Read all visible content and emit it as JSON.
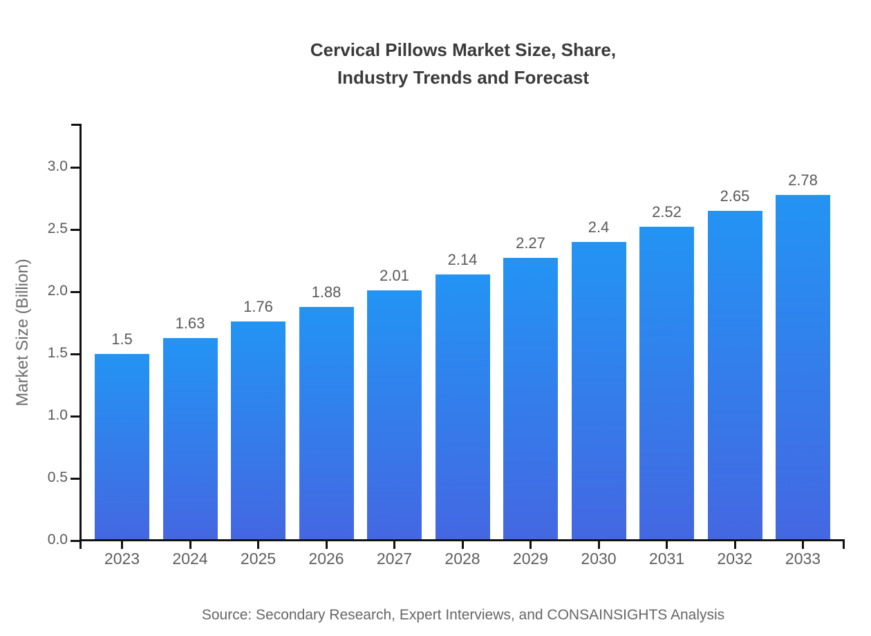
{
  "chart_data": {
    "type": "bar",
    "title": "Cervical Pillows Market Size, Share, Industry Trends and Forecast",
    "title_lines": [
      "Cervical Pillows Market Size, Share,",
      "Industry Trends and Forecast"
    ],
    "ylabel": "Market Size (Billion)",
    "xlabel": "",
    "categories": [
      "2023",
      "2024",
      "2025",
      "2026",
      "2027",
      "2028",
      "2029",
      "2030",
      "2031",
      "2032",
      "2033"
    ],
    "values": [
      1.5,
      1.63,
      1.76,
      1.88,
      2.01,
      2.14,
      2.27,
      2.4,
      2.52,
      2.65,
      2.78
    ],
    "value_labels": [
      "1.5",
      "1.63",
      "1.76",
      "1.88",
      "2.01",
      "2.14",
      "2.27",
      "2.4",
      "2.52",
      "2.65",
      "2.78"
    ],
    "ytick_values": [
      0.0,
      0.5,
      1.0,
      1.5,
      2.0,
      2.5,
      3.0
    ],
    "ytick_labels": [
      "0.0",
      "0.5",
      "1.0",
      "1.5",
      "2.0",
      "2.5",
      "3.0"
    ],
    "ylim": [
      0,
      3.35
    ],
    "grid": false,
    "legend": false,
    "source": "Source: Secondary Research, Expert Interviews, and CONSAINSIGHTS Analysis"
  },
  "colors": {
    "bar_gradient_top": "#2394f4",
    "bar_gradient_bottom": "#4467e2",
    "axis_line": "#111111",
    "title_text": "#3a3a3a",
    "tick_label": "#595959",
    "x_tick_label": "#5e5e5e",
    "value_label": "#595959",
    "axis_title": "#6e6e6e",
    "source_text": "#666666",
    "background": "#ffffff"
  }
}
